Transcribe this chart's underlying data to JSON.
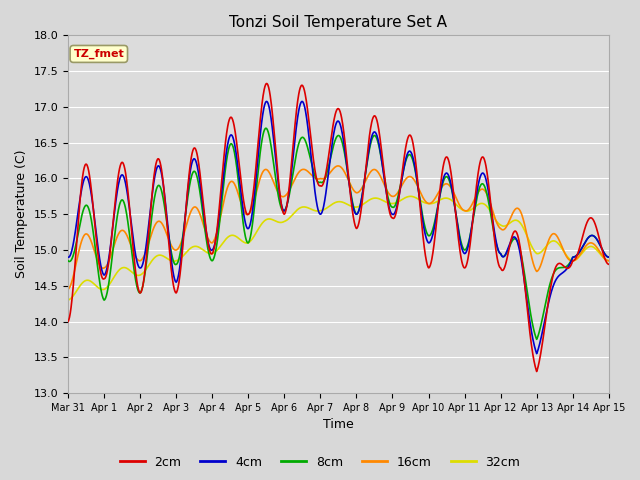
{
  "title": "Tonzi Soil Temperature Set A",
  "xlabel": "Time",
  "ylabel": "Soil Temperature (C)",
  "ylim": [
    13.0,
    18.0
  ],
  "yticks": [
    13.0,
    13.5,
    14.0,
    14.5,
    15.0,
    15.5,
    16.0,
    16.5,
    17.0,
    17.5,
    18.0
  ],
  "xtick_labels": [
    "Mar 31",
    "Apr 1",
    "Apr 2",
    "Apr 3",
    "Apr 4",
    "Apr 5",
    "Apr 6",
    "Apr 7",
    "Apr 8",
    "Apr 9",
    "Apr 10",
    "Apr 11",
    "Apr 12",
    "Apr 13",
    "Apr 14",
    "Apr 15"
  ],
  "annotation_text": "TZ_fmet",
  "annotation_fg": "#cc0000",
  "annotation_bg": "#ffffcc",
  "annotation_border": "#999966",
  "fig_bg": "#d8d8d8",
  "plot_bg": "#dcdcdc",
  "grid_color": "#ffffff",
  "legend_items": [
    "2cm",
    "4cm",
    "8cm",
    "16cm",
    "32cm"
  ],
  "line_colors": [
    "#dd0000",
    "#0000cc",
    "#00aa00",
    "#ff8800",
    "#dddd00"
  ],
  "n_days": 15
}
